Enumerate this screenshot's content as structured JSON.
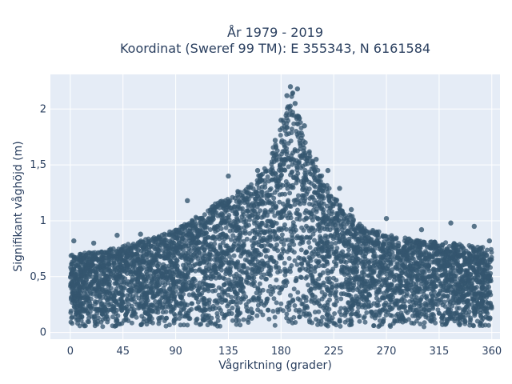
{
  "chart_data": {
    "type": "scatter",
    "title_line1": "År 1979 - 2019",
    "title_line2": "Koordinat (Sweref 99 TM): E 355343, N 6161584",
    "xlabel": "Vågriktning (grader)",
    "ylabel": "Signifikant våghöjd (m)",
    "xlim": [
      -17,
      367
    ],
    "ylim": [
      -0.06,
      2.31
    ],
    "x_ticks": [
      0,
      45,
      90,
      135,
      180,
      225,
      270,
      315,
      360
    ],
    "x_tick_labels": [
      "0",
      "45",
      "90",
      "135",
      "180",
      "225",
      "270",
      "315",
      "360"
    ],
    "y_ticks": [
      0,
      0.5,
      1,
      1.5,
      2
    ],
    "y_tick_labels": [
      "0",
      "0,5",
      "1",
      "1,5",
      "2"
    ],
    "grid": true,
    "marker_color": "#34566f",
    "background_color": "#e5ecf6",
    "grid_color": "#ffffff",
    "upper_envelope": {
      "direction": [
        0,
        20,
        45,
        70,
        90,
        110,
        130,
        150,
        165,
        175,
        185,
        190,
        195,
        205,
        215,
        230,
        250,
        270,
        300,
        330,
        360
      ],
      "height": [
        0.7,
        0.72,
        0.78,
        0.85,
        0.92,
        1.05,
        1.2,
        1.3,
        1.45,
        1.7,
        2.0,
        2.15,
        1.95,
        1.6,
        1.4,
        1.15,
        0.95,
        0.88,
        0.82,
        0.8,
        0.75
      ]
    },
    "lower_bound": 0.05,
    "sample_points": [
      {
        "x": 188,
        "y": 2.2
      },
      {
        "x": 194,
        "y": 2.18
      },
      {
        "x": 185,
        "y": 2.12
      },
      {
        "x": 192,
        "y": 2.05
      },
      {
        "x": 180,
        "y": 1.9
      },
      {
        "x": 200,
        "y": 1.85
      },
      {
        "x": 175,
        "y": 1.72
      },
      {
        "x": 210,
        "y": 1.55
      },
      {
        "x": 220,
        "y": 1.45
      },
      {
        "x": 135,
        "y": 1.4
      },
      {
        "x": 160,
        "y": 1.45
      },
      {
        "x": 230,
        "y": 1.29
      },
      {
        "x": 100,
        "y": 1.18
      },
      {
        "x": 240,
        "y": 1.1
      },
      {
        "x": 270,
        "y": 1.02
      },
      {
        "x": 325,
        "y": 0.98
      },
      {
        "x": 300,
        "y": 0.92
      },
      {
        "x": 345,
        "y": 0.95
      },
      {
        "x": 60,
        "y": 0.88
      },
      {
        "x": 40,
        "y": 0.87
      },
      {
        "x": 3,
        "y": 0.82
      },
      {
        "x": 358,
        "y": 0.82
      },
      {
        "x": 20,
        "y": 0.8
      },
      {
        "x": 85,
        "y": 0.9
      }
    ]
  }
}
